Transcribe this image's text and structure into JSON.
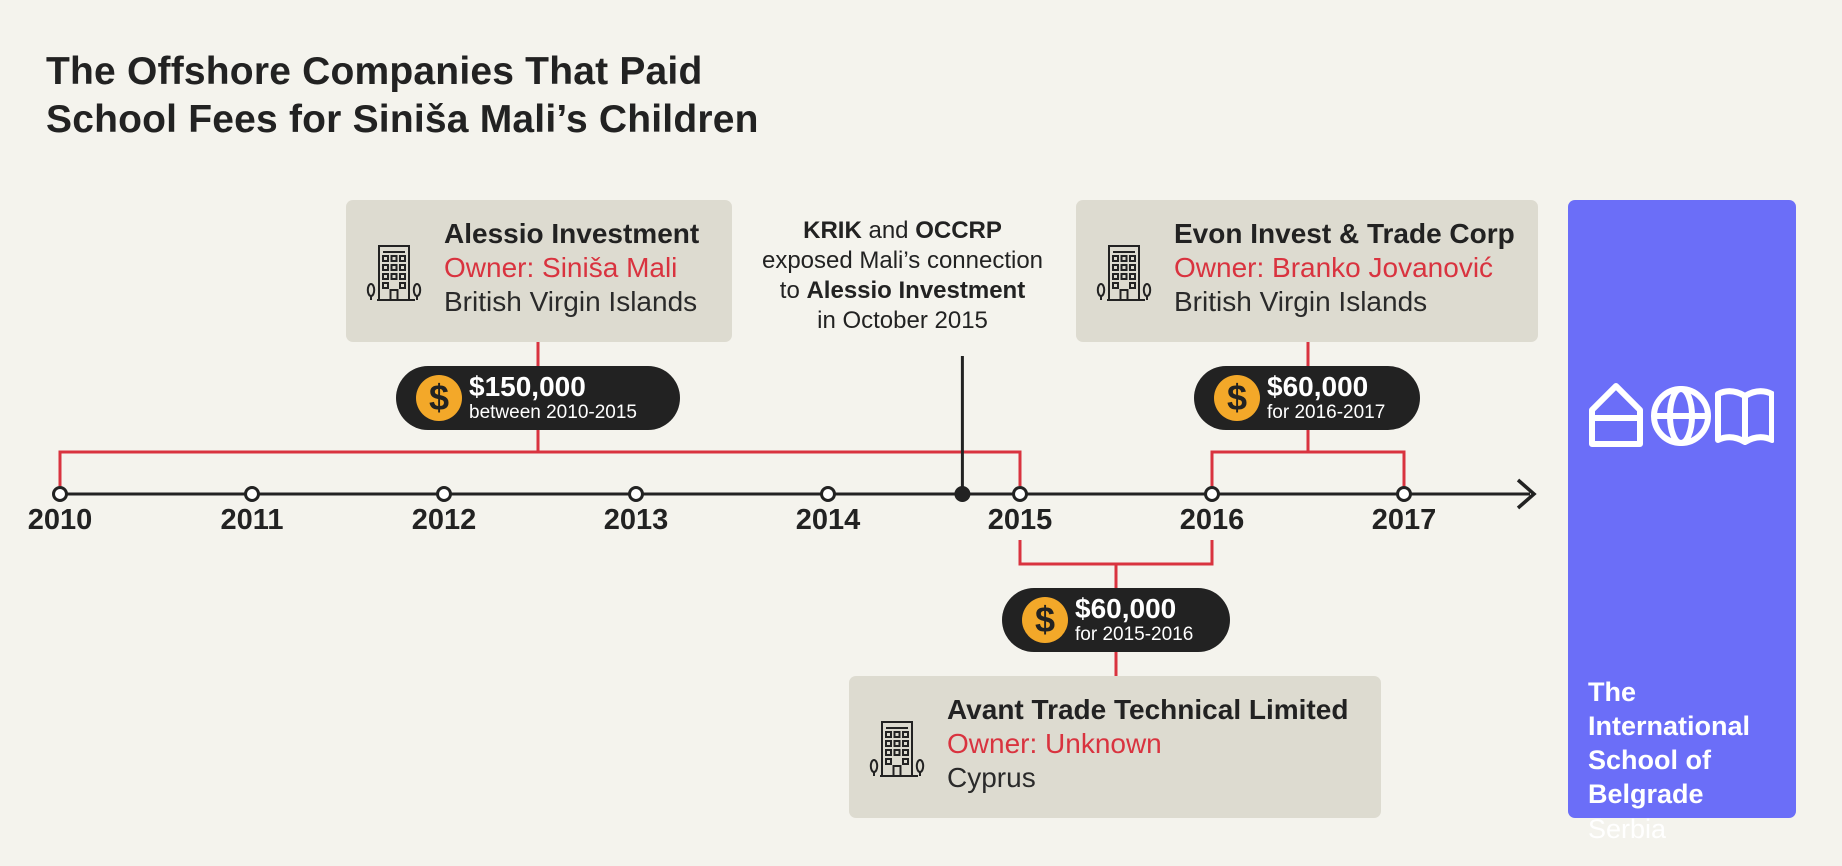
{
  "title": {
    "line1": "The Offshore Companies That Paid",
    "line2": "School Fees for Siniša Mali’s Children"
  },
  "timeline": {
    "years": [
      "2010",
      "2011",
      "2012",
      "2013",
      "2014",
      "2015",
      "2016",
      "2017"
    ]
  },
  "companies": [
    {
      "name": "Alessio Investment",
      "owner": "Owner: Siniša Mali",
      "location": "British Virgin Islands",
      "icon": "office-building-icon"
    },
    {
      "name": "Evon Invest & Trade Corp",
      "owner": "Owner: Branko Jovanović",
      "location": "British Virgin Islands",
      "icon": "office-building-icon"
    },
    {
      "name": "Avant Trade Technical Limited",
      "owner": "Owner: Unknown",
      "location": "Cyprus",
      "icon": "office-building-icon"
    }
  ],
  "payments": [
    {
      "symbol": "$",
      "amount": "$150,000",
      "period": "between 2010-2015",
      "from_year": 2010,
      "to_year": 2015
    },
    {
      "symbol": "$",
      "amount": "$60,000",
      "period": "for 2016-2017",
      "from_year": 2016,
      "to_year": 2017
    },
    {
      "symbol": "$",
      "amount": "$60,000",
      "period": "for 2015-2016",
      "from_year": 2015,
      "to_year": 2016
    }
  ],
  "exposure_note": {
    "org1": "KRIK",
    "and": " and ",
    "org2": "OCCRP",
    "line2": "exposed Mali’s connection",
    "to": "to ",
    "company": "Alessio Investment",
    "line4": "in October 2015",
    "date_year": 2015,
    "date_fraction": 0.7
  },
  "school": {
    "name": "The International School of Belgrade",
    "country": "Serbia",
    "icons": [
      "house-icon",
      "globe-icon",
      "open-book-icon"
    ]
  },
  "colors": {
    "background": "#f4f3ed",
    "box": "#dddbd0",
    "accent_red": "#d9333f",
    "pill": "#222222",
    "coin": "#f3a829",
    "school": "#6b6ef8"
  }
}
